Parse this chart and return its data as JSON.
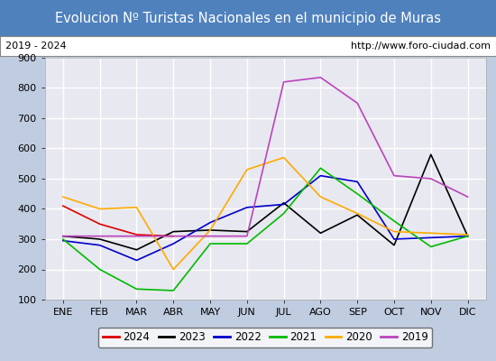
{
  "title": "Evolucion Nº Turistas Nacionales en el municipio de Muras",
  "subtitle_left": "2019 - 2024",
  "subtitle_right": "http://www.foro-ciudad.com",
  "months": [
    "ENE",
    "FEB",
    "MAR",
    "ABR",
    "MAY",
    "JUN",
    "JUL",
    "AGO",
    "SEP",
    "OCT",
    "NOV",
    "DIC"
  ],
  "series": {
    "2024": [
      410,
      350,
      315,
      310,
      null,
      null,
      null,
      null,
      null,
      null,
      null,
      null
    ],
    "2023": [
      310,
      300,
      265,
      325,
      330,
      325,
      420,
      320,
      380,
      280,
      580,
      310
    ],
    "2022": [
      295,
      280,
      230,
      285,
      355,
      405,
      415,
      510,
      490,
      300,
      305,
      310
    ],
    "2021": [
      300,
      200,
      135,
      130,
      285,
      285,
      385,
      535,
      450,
      360,
      275,
      310
    ],
    "2020": [
      440,
      400,
      405,
      200,
      330,
      530,
      570,
      440,
      385,
      325,
      320,
      315
    ],
    "2019": [
      310,
      310,
      310,
      310,
      310,
      310,
      820,
      835,
      750,
      510,
      500,
      440
    ]
  },
  "colors": {
    "2024": "#dd0000",
    "2023": "#000000",
    "2022": "#0000cc",
    "2021": "#00bb00",
    "2020": "#ffaa00",
    "2019": "#bb44bb"
  },
  "ylim": [
    100,
    900
  ],
  "yticks": [
    100,
    200,
    300,
    400,
    500,
    600,
    700,
    800,
    900
  ],
  "title_bg_color": "#4f81bd",
  "title_text_color": "#ffffff",
  "plot_bg_color": "#e8e8f0",
  "outer_bg_color": "#c0cce0",
  "grid_color": "#ffffff",
  "title_fontsize": 10.5,
  "axis_fontsize": 8,
  "legend_fontsize": 8.5
}
